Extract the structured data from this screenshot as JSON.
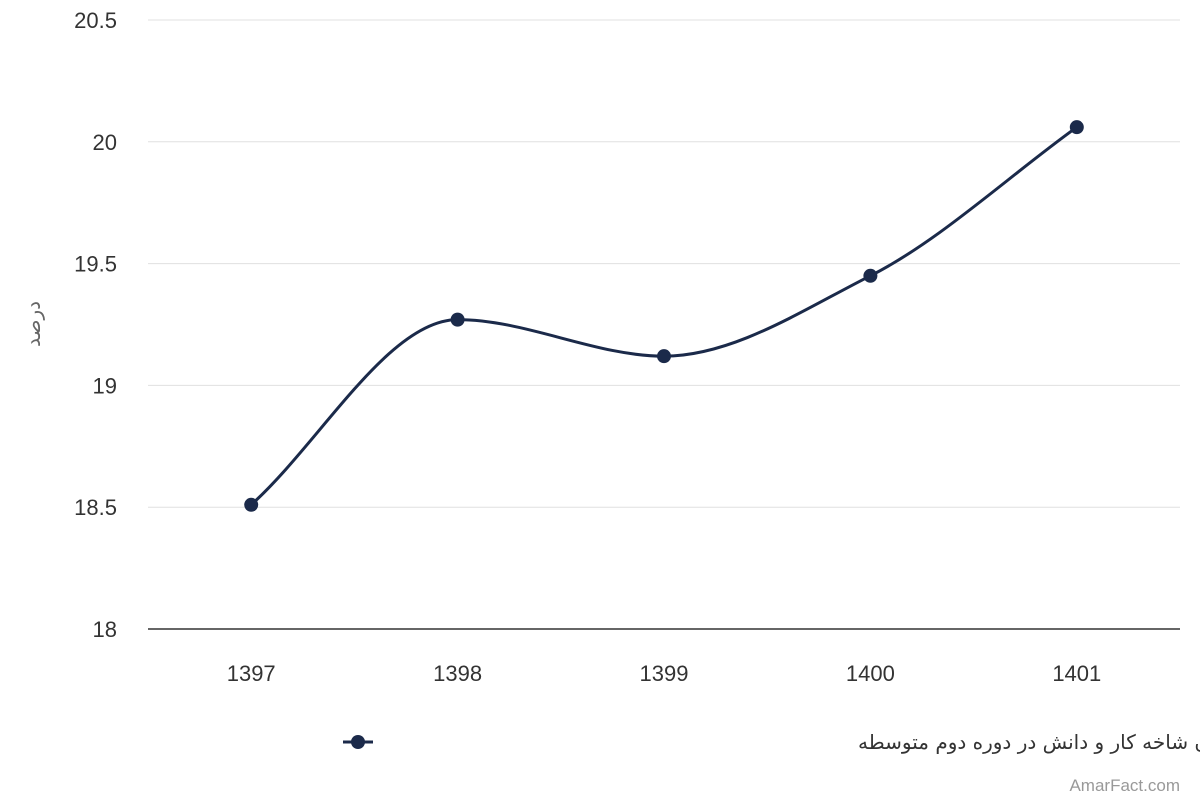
{
  "chart_data": {
    "type": "line",
    "title": "",
    "xlabel": "",
    "ylabel": "درصد",
    "categories": [
      "1397",
      "1398",
      "1399",
      "1400",
      "1401"
    ],
    "series": [
      {
        "name": "سهم دانش‌آموزان شاخه کار و دانش در دوره دوم متوسطه",
        "values": [
          18.51,
          19.27,
          19.12,
          19.45,
          20.06
        ],
        "color": "#1b2a4a"
      }
    ],
    "ylim": [
      18,
      20.5
    ],
    "yticks": [
      "18",
      "18.5",
      "19",
      "19.5",
      "20",
      "20.5"
    ],
    "grid": true,
    "smooth": true,
    "legend_position": "bottom-center"
  },
  "credit": "AmarFact.com"
}
